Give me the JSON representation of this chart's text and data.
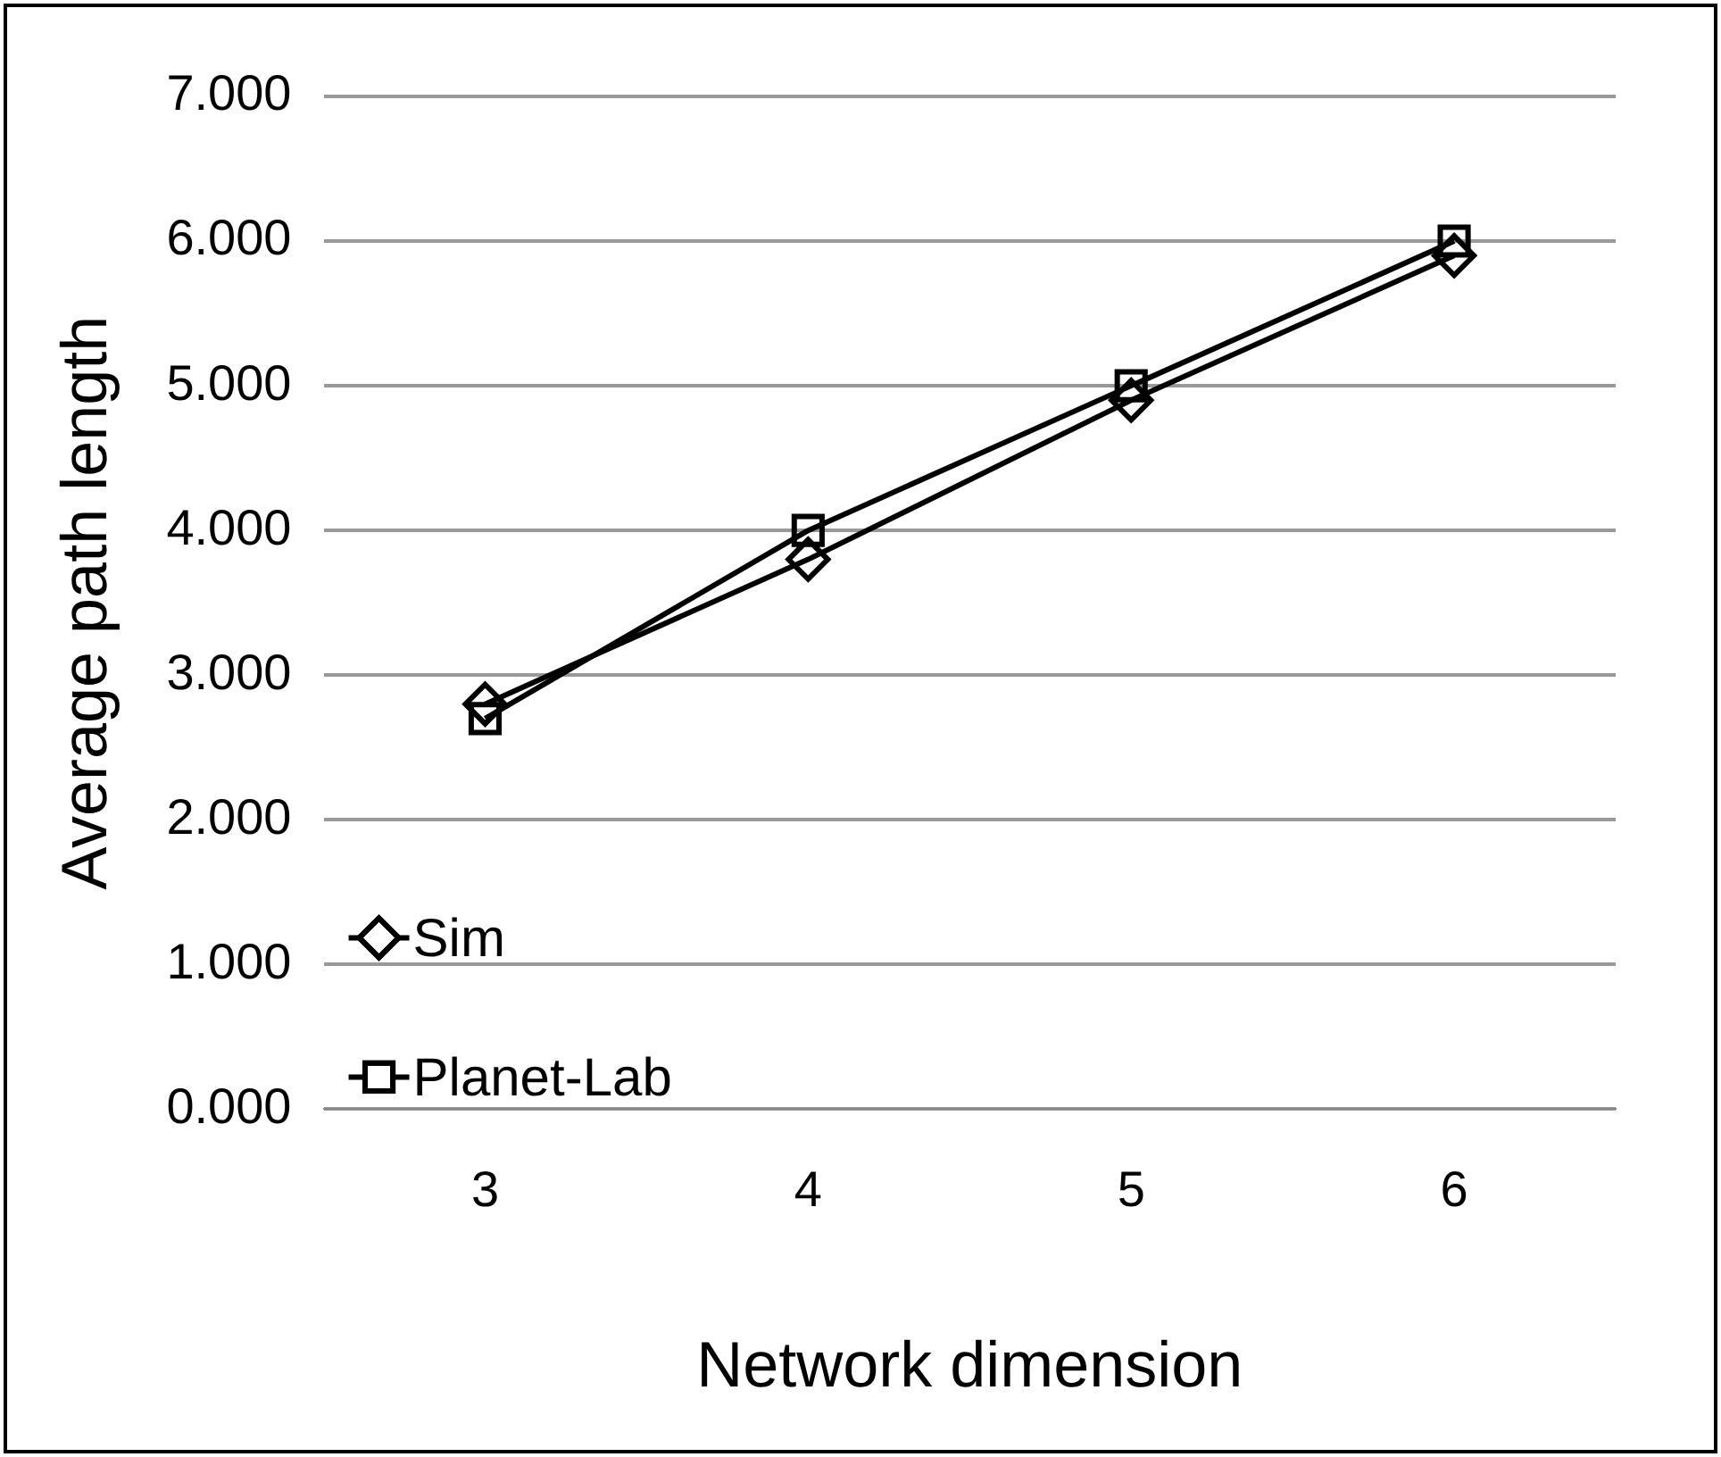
{
  "chart_data": {
    "type": "line",
    "xlabel": "Network dimension",
    "ylabel": "Average path length",
    "categories": [
      "3",
      "4",
      "5",
      "6"
    ],
    "series": [
      {
        "name": "Sim",
        "color": "#000000",
        "marker": "diamond",
        "values": [
          2.8,
          3.8,
          4.9,
          5.9
        ]
      },
      {
        "name": "Planet-Lab",
        "color": "#000000",
        "marker": "square",
        "values": [
          2.7,
          4.0,
          5.0,
          6.0
        ]
      }
    ],
    "ylim": [
      0,
      7
    ],
    "yticks": [
      {
        "value": 0,
        "label": "0.000"
      },
      {
        "value": 1,
        "label": "1.000"
      },
      {
        "value": 2,
        "label": "2.000"
      },
      {
        "value": 3,
        "label": "3.000"
      },
      {
        "value": 4,
        "label": "4.000"
      },
      {
        "value": 5,
        "label": "5.000"
      },
      {
        "value": 6,
        "label": "6.000"
      },
      {
        "value": 7,
        "label": "7.000"
      }
    ],
    "grid": "y",
    "legend": "bottom left",
    "line_style": "solid"
  }
}
